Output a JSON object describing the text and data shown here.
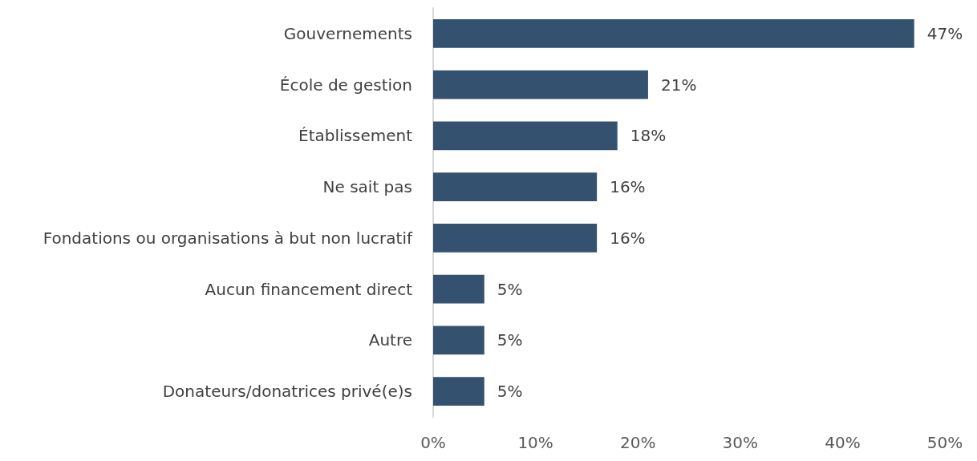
{
  "chart_data": {
    "type": "bar",
    "orientation": "horizontal",
    "categories": [
      "Gouvernements",
      "École de gestion",
      "Établissement",
      "Ne sait pas",
      "Fondations ou organisations à but non lucratif",
      "Aucun financement direct",
      "Autre",
      "Donateurs/donatrices privé(e)s"
    ],
    "values": [
      47,
      21,
      18,
      16,
      16,
      5,
      5,
      5
    ],
    "value_labels": [
      "47%",
      "21%",
      "18%",
      "16%",
      "16%",
      "5%",
      "5%",
      "5%"
    ],
    "color": "#34526f",
    "xlim": [
      0,
      50
    ],
    "xticks": [
      {
        "value": 0,
        "label": "0%"
      },
      {
        "value": 10,
        "label": "10%"
      },
      {
        "value": 20,
        "label": "20%"
      },
      {
        "value": 30,
        "label": "30%"
      },
      {
        "value": 40,
        "label": "40%"
      },
      {
        "value": 50,
        "label": "50%"
      }
    ],
    "grid": false
  }
}
